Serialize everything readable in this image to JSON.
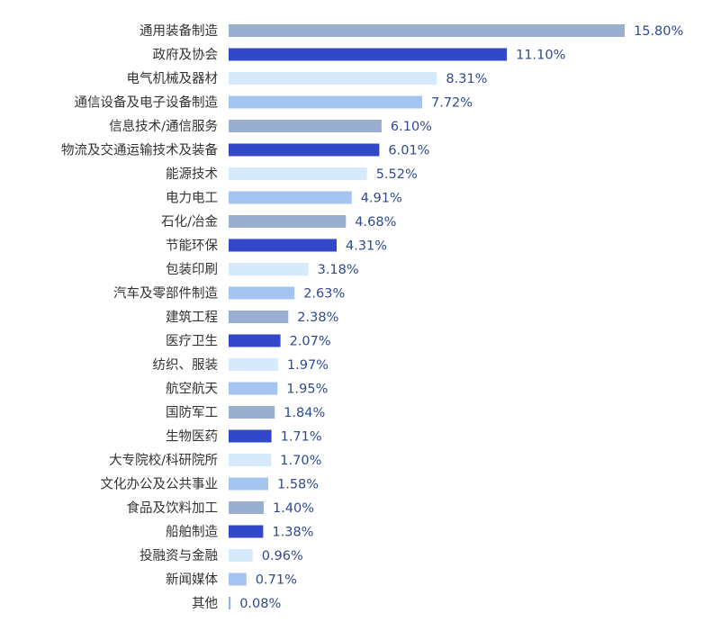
{
  "chart_data": {
    "type": "bar",
    "orientation": "horizontal",
    "categories": [
      "通用装备制造",
      "政府及协会",
      "电气机械及器材",
      "通信设备及电子设备制造",
      "信息技术/通信服务",
      "物流及交通运输技术及装备",
      "能源技术",
      "电力电工",
      "石化/冶金",
      "节能环保",
      "包装印刷",
      "汽车及零部件制造",
      "建筑工程",
      "医疗卫生",
      "纺织、服装",
      "航空航天",
      "国防军工",
      "生物医药",
      "大专院校/科研院所",
      "文化办公及公共事业",
      "食品及饮料加工",
      "船舶制造",
      "投融资与金融",
      "新闻媒体",
      "其他"
    ],
    "values": [
      15.8,
      11.1,
      8.31,
      7.72,
      6.1,
      6.01,
      5.52,
      4.91,
      4.68,
      4.31,
      3.18,
      2.63,
      2.38,
      2.07,
      1.97,
      1.95,
      1.84,
      1.71,
      1.7,
      1.58,
      1.4,
      1.38,
      0.96,
      0.71,
      0.08
    ],
    "value_labels": [
      "15.80%",
      "11.10%",
      "8.31%",
      "7.72%",
      "6.10%",
      "6.01%",
      "5.52%",
      "4.91%",
      "4.68%",
      "4.31%",
      "3.18%",
      "2.63%",
      "2.38%",
      "2.07%",
      "1.97%",
      "1.95%",
      "1.84%",
      "1.71%",
      "1.70%",
      "1.58%",
      "1.40%",
      "1.38%",
      "0.96%",
      "0.71%",
      "0.08%"
    ],
    "value_unit": "%",
    "xlim": [
      0,
      15.8
    ],
    "grid": false,
    "legend": "none",
    "colors": [
      "#9aaed0",
      "#3347c9",
      "#d6eafb",
      "#a6c4f0"
    ],
    "label_color": "#333333",
    "value_label_color": "#2e4a8f"
  }
}
